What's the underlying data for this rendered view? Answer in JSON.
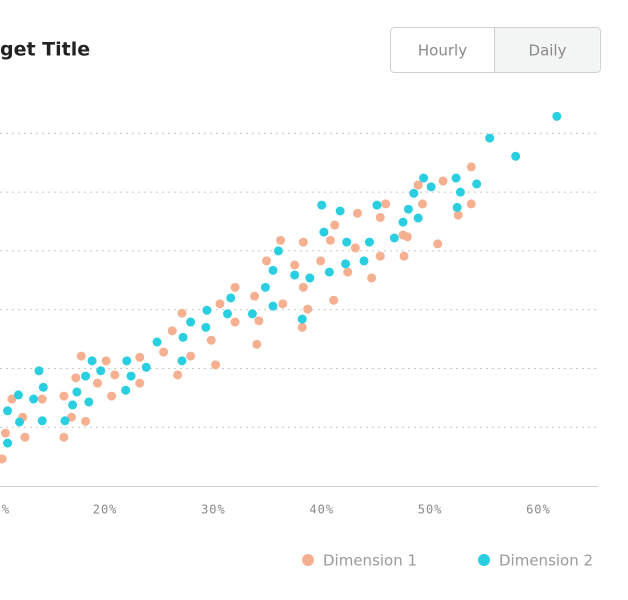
{
  "chart_data": {
    "type": "scatter",
    "title": "get Title",
    "xlim": [
      10.3,
      65.5
    ],
    "ylim": [
      0,
      6.5
    ],
    "xticks": [
      {
        "value": 10,
        "label": "%"
      },
      {
        "value": 20,
        "label": "20%"
      },
      {
        "value": 30,
        "label": "30%"
      },
      {
        "value": 40,
        "label": "40%"
      },
      {
        "value": 50,
        "label": "50%"
      },
      {
        "value": 60,
        "label": "60%"
      }
    ],
    "yticks": [
      1,
      2,
      3,
      4,
      5,
      6
    ],
    "grid": true,
    "legend": "bottom-right",
    "series": [
      {
        "name": "Dimension 1",
        "color": "#f5b091",
        "x": [
          10.5,
          10.8,
          11.4,
          12.6,
          12.4,
          14.2,
          16.2,
          16.2,
          16.9,
          17.3,
          17.8,
          18.2,
          19.3,
          20.1,
          20.6,
          20.9,
          23.2,
          23.2,
          25.4,
          26.2,
          26.7,
          27.1,
          27.9,
          29.8,
          30.2,
          30.6,
          32.0,
          32.0,
          33.8,
          34.0,
          34.2,
          34.9,
          36.2,
          36.4,
          37.5,
          38.3,
          38.3,
          38.2,
          38.7,
          39.9,
          40.8,
          41.2,
          41.1,
          42.4,
          43.1,
          43.3,
          44.6,
          45.4,
          45.9,
          45.4,
          47.5,
          47.6,
          47.9,
          48.9,
          49.3,
          50.7,
          51.2,
          52.6,
          53.8,
          53.8
        ],
        "values": [
          0.46,
          0.9,
          1.48,
          0.83,
          1.17,
          1.48,
          1.53,
          0.83,
          1.17,
          1.84,
          2.21,
          1.1,
          1.75,
          2.13,
          1.53,
          1.89,
          2.19,
          1.75,
          2.28,
          2.64,
          1.89,
          2.94,
          2.21,
          2.48,
          2.06,
          3.1,
          2.79,
          3.38,
          3.23,
          2.41,
          2.81,
          3.83,
          4.18,
          3.1,
          3.76,
          4.15,
          3.38,
          2.7,
          3.01,
          3.83,
          4.18,
          4.44,
          3.16,
          3.64,
          4.05,
          4.64,
          3.54,
          4.57,
          4.8,
          3.91,
          4.27,
          3.91,
          4.24,
          5.12,
          4.8,
          4.12,
          5.19,
          4.61,
          5.43,
          4.8
        ]
      },
      {
        "name": "Dimension 2",
        "color": "#29cfe0",
        "x": [
          11.0,
          11.0,
          12.0,
          12.1,
          13.4,
          13.9,
          14.3,
          14.2,
          16.3,
          17.0,
          17.4,
          18.2,
          18.5,
          18.8,
          19.6,
          21.9,
          22.0,
          22.4,
          23.8,
          24.8,
          27.1,
          27.2,
          27.9,
          29.3,
          29.4,
          31.3,
          31.6,
          33.6,
          34.8,
          35.5,
          35.5,
          36.0,
          37.5,
          38.2,
          38.9,
          40.0,
          40.2,
          40.7,
          41.7,
          42.2,
          42.3,
          43.9,
          44.4,
          45.1,
          46.7,
          47.5,
          48.0,
          48.5,
          48.9,
          49.4,
          50.1,
          52.4,
          52.5,
          52.8,
          54.3,
          55.5,
          57.9,
          61.7
        ],
        "values": [
          1.28,
          0.73,
          1.55,
          1.09,
          1.48,
          1.96,
          1.68,
          1.11,
          1.11,
          1.38,
          1.6,
          1.87,
          1.43,
          2.13,
          1.96,
          1.63,
          2.13,
          1.87,
          2.02,
          2.45,
          2.13,
          2.53,
          2.79,
          2.7,
          2.99,
          2.93,
          3.2,
          2.93,
          3.38,
          3.67,
          3.06,
          4.0,
          3.59,
          2.84,
          3.54,
          4.78,
          4.32,
          3.64,
          4.68,
          3.78,
          4.15,
          3.83,
          4.15,
          4.78,
          4.22,
          4.49,
          4.71,
          4.98,
          4.56,
          5.24,
          5.09,
          5.24,
          4.74,
          5.0,
          5.14,
          5.92,
          5.61,
          6.29
        ]
      }
    ]
  },
  "controls": {
    "options": [
      "Hourly",
      "Daily"
    ],
    "selected": 1
  }
}
